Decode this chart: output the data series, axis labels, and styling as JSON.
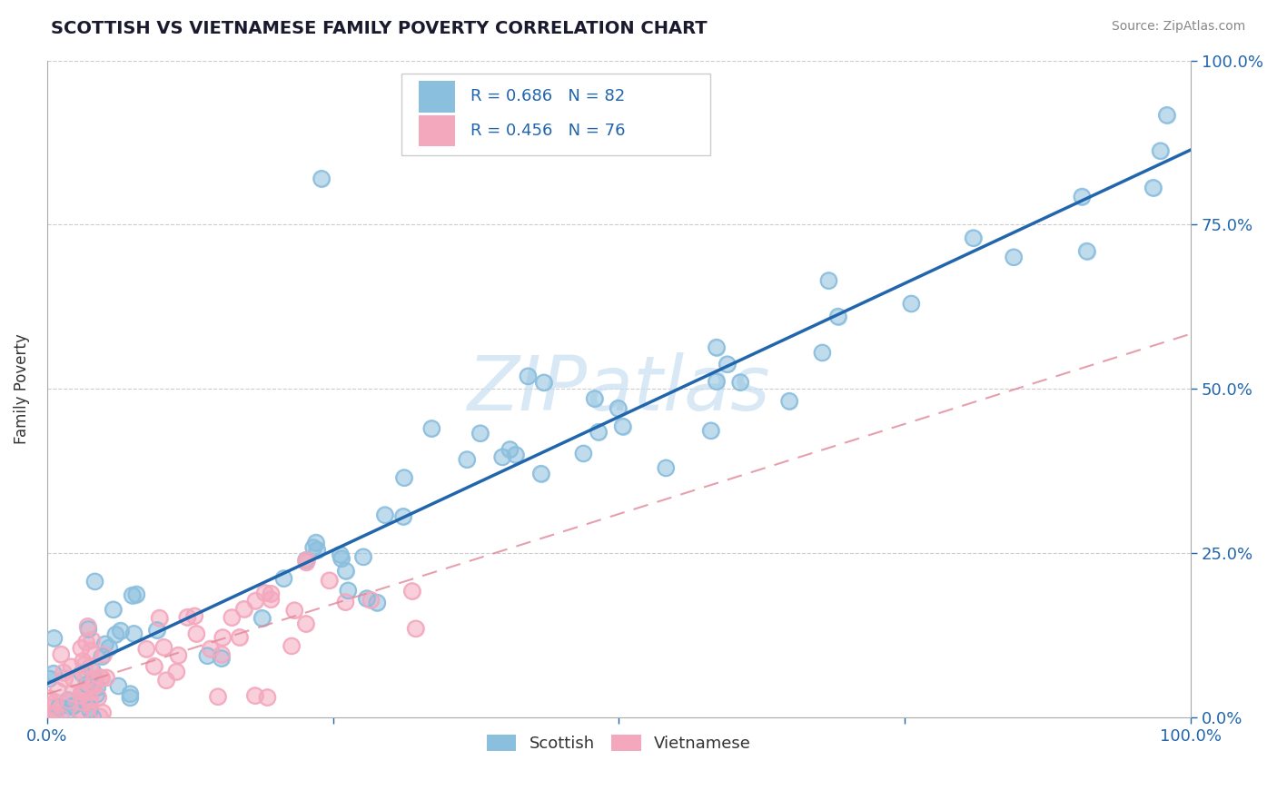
{
  "title": "SCOTTISH VS VIETNAMESE FAMILY POVERTY CORRELATION CHART",
  "source": "Source: ZipAtlas.com",
  "ylabel": "Family Poverty",
  "scottish_R": 0.686,
  "scottish_N": 82,
  "vietnamese_R": 0.456,
  "vietnamese_N": 76,
  "scottish_color": "#8bbfde",
  "vietnamese_color": "#f4a8be",
  "scottish_line_color": "#2166ac",
  "vietnamese_line_color": "#e08898",
  "watermark_color": "#c8dff0",
  "xlim": [
    0,
    1
  ],
  "ylim": [
    0,
    1
  ],
  "xticks": [
    0,
    0.25,
    0.5,
    0.75,
    1.0
  ],
  "yticks": [
    0,
    0.25,
    0.5,
    0.75,
    1.0
  ],
  "xticklabels_ends": {
    "0": "0.0%",
    "1": "100.0%"
  },
  "yticklabels_right": [
    "0.0%",
    "25.0%",
    "50.0%",
    "75.0%",
    "100.0%"
  ],
  "grid_color": "#cccccc",
  "background_color": "#ffffff",
  "title_color": "#1a1a2e",
  "tick_color": "#2166ac",
  "source_color": "#888888"
}
